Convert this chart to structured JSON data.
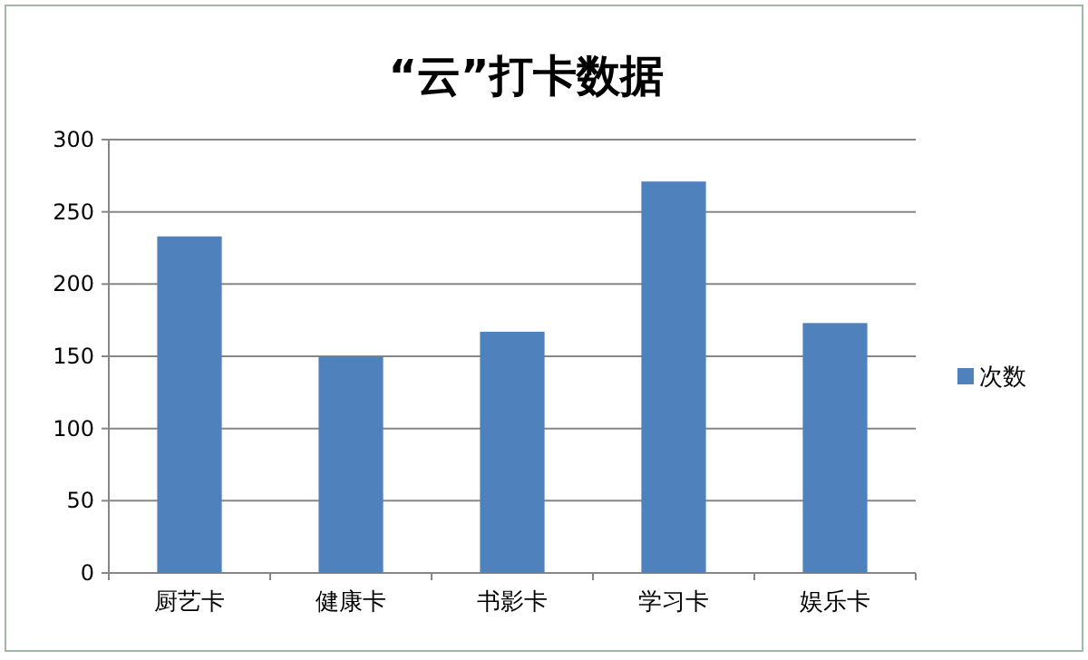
{
  "chart_data": {
    "type": "bar",
    "title": "“云”打卡数据",
    "categories": [
      "厨艺卡",
      "健康卡",
      "书影卡",
      "学习卡",
      "娱乐卡"
    ],
    "series": [
      {
        "name": "次数",
        "color": "#4f81bd",
        "values": [
          233,
          150,
          167,
          271,
          173
        ]
      }
    ],
    "ylim": [
      0,
      300
    ],
    "yticks": [
      0,
      50,
      100,
      150,
      200,
      250,
      300
    ],
    "grid": "y",
    "legend": "right"
  }
}
